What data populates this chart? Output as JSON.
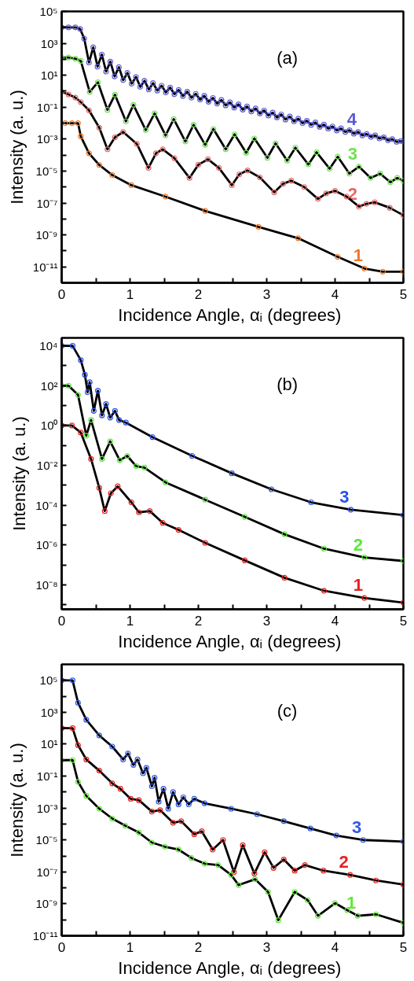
{
  "chart_data": [
    {
      "type": "scatter",
      "log": true,
      "marker": "circle",
      "line_style": "solid",
      "xlabel": "Incidence  Angle, αᵢ (degrees)",
      "ylabel": "Intensity (a. u.)",
      "xlim": [
        0,
        5
      ],
      "xticks": [
        0,
        {
          "value": 0.5,
          "label": null
        },
        1,
        {
          "value": 1.5,
          "label": null
        },
        2,
        {
          "value": 2.5,
          "label": null
        },
        3,
        {
          "value": 3.5,
          "label": null
        },
        4,
        {
          "value": 4.5,
          "label": null
        },
        5
      ],
      "ylim": [
        1e-12,
        100000.0
      ],
      "yticks": [
        {
          "value": 100000.0,
          "label": "10⁵"
        },
        {
          "value": 10000.0,
          "label": null
        },
        {
          "value": 1000.0,
          "label": "10³"
        },
        {
          "value": 100.0,
          "label": null
        },
        {
          "value": 10.0,
          "label": "10¹"
        },
        {
          "value": 1,
          "label": null
        },
        {
          "value": 0.1,
          "label": "10⁻¹"
        },
        {
          "value": 0.01,
          "label": null
        },
        {
          "value": 0.001,
          "label": "10⁻³"
        },
        {
          "value": 0.0001,
          "label": null
        },
        {
          "value": 1e-05,
          "label": "10⁻⁵"
        },
        {
          "value": 1e-06,
          "label": null
        },
        {
          "value": 1e-07,
          "label": "10⁻⁷"
        },
        {
          "value": 1e-08,
          "label": null
        },
        {
          "value": 1e-09,
          "label": "10⁻⁹"
        },
        {
          "value": 1e-10,
          "label": null
        },
        {
          "value": 1e-11,
          "label": "10⁻¹¹"
        }
      ],
      "annotations": [
        "(a)"
      ],
      "series": [
        {
          "name": "4",
          "color": "#5a5ad8",
          "x": [
            0,
            0.1,
            0.2,
            0.27,
            0.33,
            0.4,
            0.4625,
            0.525,
            0.5875,
            0.65,
            0.7125,
            0.775,
            0.8375,
            0.9,
            0.9625,
            1.025,
            1.0875,
            1.15,
            1.2125,
            1.275,
            1.3375,
            1.4,
            1.4625,
            1.525,
            1.5875,
            1.65,
            1.7125,
            1.775,
            1.8375,
            1.9,
            1.9625,
            2.025,
            2.0875,
            2.15,
            2.2125,
            2.275,
            2.3375,
            2.4,
            2.4625,
            2.525,
            2.5875,
            2.65,
            2.7125,
            2.775,
            2.8375,
            2.9,
            2.9625,
            3.025,
            3.0875,
            3.15,
            3.2125,
            3.275,
            3.3375,
            3.4,
            3.4625,
            3.525,
            3.5875,
            3.65,
            3.7125,
            3.775,
            3.8375,
            3.9,
            3.9625,
            4.025,
            4.0875,
            4.15,
            4.2125,
            4.275,
            4.3375,
            4.4,
            4.4625,
            4.525,
            4.5875,
            4.65,
            4.7125,
            4.775,
            4.8375,
            4.9,
            4.9625,
            5.0
          ],
          "values": [
            10000.0,
            10000.0,
            10000.0,
            7900.0,
            2000.0,
            63,
            560.0,
            35,
            200.0,
            17,
            71,
            8.5,
            32,
            5.0,
            14,
            3.0,
            7.9,
            1.9,
            4.5,
            1.3,
            3.2,
            1.1,
            2.2,
            0.85,
            1.7,
            0.66,
            1.2,
            0.5,
            0.93,
            0.39,
            0.69,
            0.3,
            0.51,
            0.22,
            0.38,
            0.17,
            0.28,
            0.13,
            0.2,
            0.095,
            0.15,
            0.071,
            0.11,
            0.054,
            0.083,
            0.04,
            0.062,
            0.03,
            0.046,
            0.023,
            0.035,
            0.017,
            0.026,
            0.013,
            0.019,
            0.01,
            0.014,
            0.0079,
            0.011,
            0.0059,
            0.0081,
            0.0046,
            0.0062,
            0.0035,
            0.0047,
            0.0028,
            0.0036,
            0.0022,
            0.0028,
            0.0017,
            0.0021,
            0.0014,
            0.0017,
            0.0011,
            0.0013,
            0.00085,
            0.001,
            0.00068,
            0.00076,
            0.00071
          ]
        },
        {
          "name": "3",
          "color": "#6ee050",
          "x": [
            0,
            0.1,
            0.2,
            0.28,
            0.41,
            0.53,
            0.67,
            0.78,
            0.94,
            1.05,
            1.23,
            1.36,
            1.52,
            1.64,
            1.81,
            1.93,
            2.1,
            2.22,
            2.4,
            2.53,
            2.7,
            2.82,
            3.01,
            3.13,
            3.3,
            3.42,
            3.61,
            3.73,
            3.92,
            4.04,
            4.21,
            4.35,
            4.52,
            4.66,
            4.81,
            4.91,
            5
          ],
          "values": [
            130.0,
            130.0,
            110.0,
            79,
            0.91,
            3.6,
            0.068,
            0.6,
            0.013,
            0.14,
            0.0037,
            0.041,
            0.0017,
            0.018,
            0.00071,
            0.0079,
            0.00044,
            0.0043,
            0.00023,
            0.002,
            0.00014,
            0.0011,
            6.8e-05,
            0.00054,
            4.5e-05,
            0.00029,
            2.6e-05,
            0.00015,
            1.4e-05,
            7.9e-05,
            6.9e-06,
            1.9e-05,
            3.7e-06,
            6.9e-06,
            2e-06,
            3.7e-06,
            2.5e-06
          ]
        },
        {
          "name": "2",
          "color": "#e86868",
          "x": [
            0,
            0.1,
            0.2,
            0.28,
            0.4,
            0.55,
            0.67,
            0.78,
            0.9,
            1.1,
            1.27,
            1.38,
            1.48,
            1.65,
            1.87,
            2.0,
            2.14,
            2.3,
            2.49,
            2.6,
            2.72,
            2.9,
            3.11,
            3.24,
            3.36,
            3.55,
            3.75,
            3.87,
            4.0,
            4.17,
            4.35,
            4.46,
            4.58,
            4.8,
            5
          ],
          "values": [
            0.91,
            0.63,
            0.4,
            0.21,
            0.063,
            0.0052,
            0.00023,
            0.0013,
            0.0028,
            0.0005,
            1.6e-05,
            0.00013,
            0.00023,
            6.3e-05,
            3.7e-06,
            2.5e-05,
            5.5e-05,
            1.6e-05,
            1.3e-06,
            6.3e-06,
            1.1e-05,
            4e-06,
            4.7e-07,
            1.6e-06,
            2.5e-06,
            1e-06,
            1.8e-07,
            4e-07,
            5.8e-07,
            2.5e-07,
            5.9e-08,
            8.9e-08,
            1.1e-07,
            5e-08,
            1.7e-08
          ]
        },
        {
          "name": "1",
          "color": "#f07828",
          "x": [
            0.05,
            0.15,
            0.24,
            0.28,
            0.4,
            0.55,
            0.74,
            1.02,
            1.52,
            2.1,
            2.88,
            3.46,
            4.04,
            4.43,
            4.7,
            5
          ],
          "values": [
            0.01,
            0.01,
            0.01,
            0.0015,
            0.00013,
            2.4e-05,
            5.6e-06,
            1.3e-06,
            2.5e-07,
            3.2e-08,
            3.2e-09,
            6.2e-10,
            4.2e-11,
            7.9e-12,
            5e-12,
            5e-12
          ]
        },
        {
          "type": "line",
          "marker": "none",
          "color": "#000000",
          "x": [
            0,
            0.1,
            0.2,
            0.27,
            0.33,
            0.4,
            0.4625,
            0.525,
            0.5875,
            0.65,
            0.7125,
            0.775,
            0.8375,
            0.9,
            0.9625,
            1.025,
            1.0875,
            1.15,
            1.2125,
            1.275,
            1.3375,
            1.4,
            1.4625,
            1.525,
            1.5875,
            1.65,
            1.7125,
            1.775,
            1.8375,
            1.9,
            1.9625,
            2.025,
            2.0875,
            2.15,
            2.2125,
            2.275,
            2.3375,
            2.4,
            2.4625,
            2.525,
            2.5875,
            2.65,
            2.7125,
            2.775,
            2.8375,
            2.9,
            2.9625,
            3.025,
            3.0875,
            3.15,
            3.2125,
            3.275,
            3.3375,
            3.4,
            3.4625,
            3.525,
            3.5875,
            3.65,
            3.7125,
            3.775,
            3.8375,
            3.9,
            3.9625,
            4.025,
            4.0875,
            4.15,
            4.2125,
            4.275,
            4.3375,
            4.4,
            4.4625,
            4.525,
            4.5875,
            4.65,
            4.7125,
            4.775,
            4.8375,
            4.9,
            4.9625,
            5.0
          ],
          "values": [
            10000.0,
            10000.0,
            10000.0,
            7900.0,
            2000.0,
            63,
            560.0,
            35,
            200.0,
            17,
            71,
            8.5,
            32,
            5.0,
            14,
            3.0,
            7.9,
            1.9,
            4.5,
            1.3,
            3.2,
            1.1,
            2.2,
            0.85,
            1.7,
            0.66,
            1.2,
            0.5,
            0.93,
            0.39,
            0.69,
            0.3,
            0.51,
            0.22,
            0.38,
            0.17,
            0.28,
            0.13,
            0.2,
            0.095,
            0.15,
            0.071,
            0.11,
            0.054,
            0.083,
            0.04,
            0.062,
            0.03,
            0.046,
            0.023,
            0.035,
            0.017,
            0.026,
            0.013,
            0.019,
            0.01,
            0.014,
            0.0079,
            0.011,
            0.0059,
            0.0081,
            0.0046,
            0.0062,
            0.0035,
            0.0047,
            0.0028,
            0.0036,
            0.0022,
            0.0028,
            0.0017,
            0.0021,
            0.0014,
            0.0017,
            0.0011,
            0.0013,
            0.00085,
            0.001,
            0.00068,
            0.00076,
            0.00071
          ]
        },
        {
          "type": "line",
          "marker": "none",
          "color": "#000000",
          "x": [
            0,
            0.1,
            0.2,
            0.28,
            0.41,
            0.53,
            0.67,
            0.78,
            0.94,
            1.05,
            1.23,
            1.36,
            1.52,
            1.64,
            1.81,
            1.93,
            2.1,
            2.22,
            2.4,
            2.53,
            2.7,
            2.82,
            3.01,
            3.13,
            3.3,
            3.42,
            3.61,
            3.73,
            3.92,
            4.04,
            4.21,
            4.35,
            4.52,
            4.66,
            4.81,
            4.91,
            5
          ],
          "values": [
            130.0,
            130.0,
            110.0,
            79,
            0.91,
            3.6,
            0.068,
            0.6,
            0.013,
            0.14,
            0.0037,
            0.041,
            0.0017,
            0.018,
            0.00071,
            0.0079,
            0.00044,
            0.0043,
            0.00023,
            0.002,
            0.00014,
            0.0011,
            6.8e-05,
            0.00054,
            4.5e-05,
            0.00029,
            2.6e-05,
            0.00015,
            1.4e-05,
            7.9e-05,
            6.9e-06,
            1.9e-05,
            3.7e-06,
            6.9e-06,
            2e-06,
            3.7e-06,
            2.5e-06
          ]
        },
        {
          "type": "line",
          "marker": "none",
          "color": "#000000",
          "x": [
            0,
            0.1,
            0.2,
            0.28,
            0.4,
            0.55,
            0.67,
            0.78,
            0.9,
            1.1,
            1.27,
            1.38,
            1.48,
            1.65,
            1.87,
            2.0,
            2.14,
            2.3,
            2.49,
            2.6,
            2.72,
            2.9,
            3.11,
            3.24,
            3.36,
            3.55,
            3.75,
            3.87,
            4.0,
            4.17,
            4.35,
            4.46,
            4.58,
            4.8,
            5
          ],
          "values": [
            0.91,
            0.63,
            0.4,
            0.21,
            0.063,
            0.0052,
            0.00023,
            0.0013,
            0.0028,
            0.0005,
            1.6e-05,
            0.00013,
            0.00023,
            6.3e-05,
            3.7e-06,
            2.5e-05,
            5.5e-05,
            1.6e-05,
            1.3e-06,
            6.3e-06,
            1.1e-05,
            4e-06,
            4.7e-07,
            1.6e-06,
            2.5e-06,
            1e-06,
            1.8e-07,
            4e-07,
            5.8e-07,
            2.5e-07,
            5.9e-08,
            8.9e-08,
            1.1e-07,
            5e-08,
            1.7e-08
          ]
        },
        {
          "type": "line",
          "marker": "none",
          "color": "#000000",
          "x": [
            0.05,
            0.15,
            0.24,
            0.28,
            0.4,
            0.55,
            0.74,
            1.02,
            1.52,
            2.1,
            2.88,
            3.46,
            4.04,
            4.43,
            4.7,
            5
          ],
          "values": [
            0.01,
            0.01,
            0.01,
            0.0015,
            0.00013,
            2.4e-05,
            5.6e-06,
            1.3e-06,
            2.5e-07,
            3.2e-08,
            3.2e-09,
            6.2e-10,
            4.2e-11,
            7.9e-12,
            5e-12,
            5e-12
          ]
        }
      ]
    },
    {
      "type": "scatter",
      "log": true,
      "marker": "circle",
      "line_style": "solid",
      "xlabel": "Incidence  Angle, αᵢ (degrees)",
      "ylabel": "Intensity (a. u.)",
      "xlim": [
        0,
        5
      ],
      "xticks": [
        0,
        {
          "value": 0.5,
          "label": null
        },
        1,
        {
          "value": 1.5,
          "label": null
        },
        2,
        {
          "value": 2.5,
          "label": null
        },
        3,
        {
          "value": 3.5,
          "label": null
        },
        4,
        {
          "value": 4.5,
          "label": null
        },
        5
      ],
      "ylim": [
        6e-10,
        25000.0
      ],
      "yticks": [
        {
          "value": 10000.0,
          "label": "10⁴"
        },
        {
          "value": 1000.0,
          "label": null
        },
        {
          "value": 100.0,
          "label": "10²"
        },
        {
          "value": 10.0,
          "label": null
        },
        {
          "value": 1,
          "label": "10⁰"
        },
        {
          "value": 0.1,
          "label": null
        },
        {
          "value": 0.01,
          "label": "10⁻²"
        },
        {
          "value": 0.001,
          "label": null
        },
        {
          "value": 0.0001,
          "label": "10⁻⁴"
        },
        {
          "value": 1e-05,
          "label": null
        },
        {
          "value": 1e-06,
          "label": "10⁻⁶"
        },
        {
          "value": 1e-07,
          "label": null
        },
        {
          "value": 1e-08,
          "label": "10⁻⁸"
        },
        {
          "value": 1e-09,
          "label": null
        }
      ],
      "annotations": [
        "(b)"
      ],
      "series": [
        {
          "name": "3",
          "color": "#2850e8",
          "x": [
            0,
            0.16,
            0.28,
            0.34,
            0.38,
            0.41,
            0.47,
            0.53,
            0.59,
            0.65,
            0.71,
            0.78,
            0.84,
            0.94,
            1.33,
            1.91,
            2.49,
            3.07,
            3.65,
            4.23,
            5
          ],
          "values": [
            10000.0,
            10000.0,
            1900.0,
            350.0,
            47,
            150.0,
            5.4,
            56,
            3.2,
            12,
            2.5,
            5.4,
            1.9,
            1.4,
            0.26,
            0.03,
            0.004,
            0.00063,
            0.00014,
            6e-05,
            3.2e-05
          ]
        },
        {
          "name": "2",
          "color": "#58e838",
          "x": [
            0,
            0.1,
            0.24,
            0.36,
            0.43,
            0.59,
            0.71,
            0.85,
            0.96,
            1.09,
            1.21,
            1.52,
            2.1,
            2.68,
            3.26,
            3.84,
            4.43,
            5
          ],
          "values": [
            100.0,
            100.0,
            34,
            0.31,
            1.9,
            0.021,
            0.16,
            0.018,
            0.03,
            0.0091,
            0.0078,
            0.0014,
            0.00019,
            2.6e-05,
            3.5e-06,
            6.6e-07,
            2.4e-07,
            1.6e-07
          ]
        },
        {
          "name": "1",
          "color": "#e82020",
          "x": [
            0,
            0.15,
            0.28,
            0.43,
            0.55,
            0.63,
            0.72,
            0.82,
            1.02,
            1.13,
            1.29,
            1.48,
            1.71,
            2.1,
            2.68,
            3.26,
            3.84,
            4.43,
            5
          ],
          "values": [
            1.0,
            1.0,
            0.44,
            0.021,
            0.00074,
            5.1e-05,
            0.0004,
            0.00089,
            0.00014,
            4.4e-05,
            5.1e-05,
            1.3e-05,
            5.8e-06,
            1.3e-06,
            1.7e-07,
            2.3e-08,
            5.1e-09,
            2.2e-09,
            1.3e-09
          ]
        },
        {
          "type": "line",
          "marker": "none",
          "color": "#000000",
          "x": [
            0,
            0.16,
            0.28,
            0.34,
            0.38,
            0.41,
            0.47,
            0.53,
            0.59,
            0.65,
            0.71,
            0.78,
            0.84,
            0.94,
            1.33,
            1.91,
            2.49,
            3.07,
            3.65,
            4.23,
            5
          ],
          "values": [
            10000.0,
            10000.0,
            1900.0,
            350.0,
            47,
            150.0,
            5.4,
            56,
            3.2,
            12,
            2.5,
            5.4,
            1.9,
            1.4,
            0.26,
            0.03,
            0.004,
            0.00063,
            0.00014,
            6e-05,
            3.2e-05
          ]
        },
        {
          "type": "line",
          "marker": "none",
          "color": "#000000",
          "x": [
            0,
            0.1,
            0.24,
            0.36,
            0.43,
            0.59,
            0.71,
            0.85,
            0.96,
            1.09,
            1.21,
            1.52,
            2.1,
            2.68,
            3.26,
            3.84,
            4.43,
            5
          ],
          "values": [
            100.0,
            100.0,
            34,
            0.31,
            1.9,
            0.021,
            0.16,
            0.018,
            0.03,
            0.0091,
            0.0078,
            0.0014,
            0.00019,
            2.6e-05,
            3.5e-06,
            6.6e-07,
            2.4e-07,
            1.6e-07
          ]
        },
        {
          "type": "line",
          "marker": "none",
          "color": "#000000",
          "x": [
            0,
            0.15,
            0.28,
            0.43,
            0.55,
            0.63,
            0.72,
            0.82,
            1.02,
            1.13,
            1.29,
            1.48,
            1.71,
            2.1,
            2.68,
            3.26,
            3.84,
            4.43,
            5
          ],
          "values": [
            1.0,
            1.0,
            0.44,
            0.021,
            0.00074,
            5.1e-05,
            0.0004,
            0.00089,
            0.00014,
            4.4e-05,
            5.1e-05,
            1.3e-05,
            5.8e-06,
            1.3e-06,
            1.7e-07,
            2.3e-08,
            5.1e-09,
            2.2e-09,
            1.3e-09
          ]
        }
      ]
    },
    {
      "type": "scatter",
      "log": true,
      "marker": "circle",
      "line_style": "solid",
      "xlabel": "Incidence  Angle, αᵢ (degrees)",
      "ylabel": "Intensity (a. u.)",
      "xlim": [
        0,
        5
      ],
      "xticks": [
        0,
        {
          "value": 0.5,
          "label": null
        },
        1,
        {
          "value": 1.5,
          "label": null
        },
        2,
        {
          "value": 2.5,
          "label": null
        },
        3,
        {
          "value": 3.5,
          "label": null
        },
        4,
        {
          "value": 4.5,
          "label": null
        },
        5
      ],
      "ylim": [
        1e-11,
        1000000.0
      ],
      "yticks": [
        {
          "value": 100000.0,
          "label": "10⁵"
        },
        {
          "value": 10000.0,
          "label": null
        },
        {
          "value": 1000.0,
          "label": "10³"
        },
        {
          "value": 100.0,
          "label": null
        },
        {
          "value": 10.0,
          "label": "10¹"
        },
        {
          "value": 1,
          "label": null
        },
        {
          "value": 0.1,
          "label": "10⁻¹"
        },
        {
          "value": 0.01,
          "label": null
        },
        {
          "value": 0.001,
          "label": "10⁻³"
        },
        {
          "value": 0.0001,
          "label": null
        },
        {
          "value": 1e-05,
          "label": "10⁻⁵"
        },
        {
          "value": 1e-06,
          "label": null
        },
        {
          "value": 1e-07,
          "label": "10⁻⁷"
        },
        {
          "value": 1e-08,
          "label": null
        },
        {
          "value": 1e-09,
          "label": "10⁻⁹"
        },
        {
          "value": 1e-10,
          "label": null
        },
        {
          "value": 1e-11,
          "label": "10⁻¹¹"
        }
      ],
      "annotations": [
        "(c)"
      ],
      "series": [
        {
          "name": "3",
          "color": "#3058e8",
          "x": [
            0,
            0.16,
            0.24,
            0.36,
            0.55,
            0.74,
            0.9,
            0.97,
            1.05,
            1.11,
            1.19,
            1.24,
            1.32,
            1.36,
            1.42,
            1.49,
            1.56,
            1.63,
            1.71,
            1.78,
            1.86,
            1.94,
            2.09,
            2.48,
            2.86,
            3.25,
            3.64,
            4.02,
            4.41,
            5
          ],
          "values": [
            100000.0,
            100000.0,
            3900.0,
            340.0,
            35,
            7.1,
            1.1,
            2.6,
            0.5,
            1.1,
            0.15,
            0.33,
            0.023,
            0.079,
            0.0025,
            0.016,
            0.00091,
            0.01,
            0.0017,
            0.0047,
            0.0017,
            0.0038,
            0.002,
            0.00091,
            0.00041,
            0.00015,
            5.2e-05,
            1.9e-05,
            1e-05,
            7.9e-06
          ]
        },
        {
          "name": "2",
          "color": "#e82020",
          "x": [
            0,
            0.16,
            0.24,
            0.36,
            0.55,
            0.74,
            0.86,
            1.01,
            1.13,
            1.32,
            1.44,
            1.63,
            1.75,
            1.94,
            2.05,
            2.21,
            2.36,
            2.52,
            2.65,
            2.82,
            2.97,
            3.1,
            3.25,
            3.41,
            3.56,
            3.83,
            4.22,
            4.6,
            5
          ],
          "values": [
            100.0,
            100.0,
            8.7,
            1.1,
            0.22,
            0.035,
            0.016,
            0.0038,
            0.0031,
            0.0006,
            0.00074,
            0.00012,
            0.00015,
            2.3e-05,
            3.5e-05,
            2.5e-06,
            1e-05,
            9.8e-08,
            4.7e-06,
            7.9e-08,
            1.7e-06,
            1.8e-07,
            6e-07,
            1.2e-07,
            2.7e-07,
            1.2e-07,
            6.5e-08,
            2.9e-08,
            1.6e-08
          ]
        },
        {
          "name": "1",
          "color": "#60e838",
          "x": [
            0,
            0.16,
            0.24,
            0.36,
            0.55,
            0.74,
            0.93,
            1.13,
            1.32,
            1.51,
            1.71,
            1.9,
            2.09,
            2.29,
            2.48,
            2.59,
            2.83,
            3.02,
            3.17,
            3.41,
            3.6,
            3.75,
            4.0,
            4.18,
            4.33,
            4.6,
            5
          ],
          "values": [
            1.0,
            1.0,
            0.044,
            0.0058,
            0.00091,
            0.00022,
            7.9e-05,
            2.9e-05,
            6.9e-06,
            3.8e-06,
            2.5e-06,
            7.4e-07,
            3.3e-07,
            2.7e-07,
            6.5e-08,
            1.5e-08,
            3.5e-08,
            5.6e-09,
            9.5e-11,
            5.6e-09,
            1.7e-09,
            1.8e-10,
            1.1e-09,
            4e-10,
            1.8e-10,
            2.2e-10,
            6.5e-11
          ]
        },
        {
          "type": "line",
          "marker": "none",
          "color": "#000000",
          "x": [
            0,
            0.16,
            0.24,
            0.36,
            0.55,
            0.74,
            0.9,
            0.97,
            1.05,
            1.11,
            1.19,
            1.24,
            1.32,
            1.36,
            1.42,
            1.49,
            1.56,
            1.63,
            1.71,
            1.78,
            1.86,
            1.94,
            2.09,
            2.48,
            2.86,
            3.25,
            3.64,
            4.02,
            4.41,
            5
          ],
          "values": [
            100000.0,
            100000.0,
            3900.0,
            340.0,
            35,
            7.1,
            1.1,
            2.6,
            0.5,
            1.1,
            0.15,
            0.33,
            0.023,
            0.079,
            0.0025,
            0.016,
            0.00091,
            0.01,
            0.0017,
            0.0047,
            0.0017,
            0.0038,
            0.002,
            0.00091,
            0.00041,
            0.00015,
            5.2e-05,
            1.9e-05,
            1e-05,
            7.9e-06
          ]
        },
        {
          "type": "line",
          "marker": "none",
          "color": "#000000",
          "x": [
            0,
            0.16,
            0.24,
            0.36,
            0.55,
            0.74,
            0.86,
            1.01,
            1.13,
            1.32,
            1.44,
            1.63,
            1.75,
            1.94,
            2.05,
            2.21,
            2.36,
            2.52,
            2.65,
            2.82,
            2.97,
            3.1,
            3.25,
            3.41,
            3.56,
            3.83,
            4.22,
            4.6,
            5
          ],
          "values": [
            100.0,
            100.0,
            8.7,
            1.1,
            0.22,
            0.035,
            0.016,
            0.0038,
            0.0031,
            0.0006,
            0.00074,
            0.00012,
            0.00015,
            2.3e-05,
            3.5e-05,
            2.5e-06,
            1e-05,
            9.8e-08,
            4.7e-06,
            7.9e-08,
            1.7e-06,
            1.8e-07,
            6e-07,
            1.2e-07,
            2.7e-07,
            1.2e-07,
            6.5e-08,
            2.9e-08,
            1.6e-08
          ]
        },
        {
          "type": "line",
          "marker": "none",
          "color": "#000000",
          "x": [
            0,
            0.16,
            0.24,
            0.36,
            0.55,
            0.74,
            0.93,
            1.13,
            1.32,
            1.51,
            1.71,
            1.9,
            2.09,
            2.29,
            2.48,
            2.59,
            2.83,
            3.02,
            3.17,
            3.41,
            3.6,
            3.75,
            4.0,
            4.18,
            4.33,
            4.6,
            5
          ],
          "values": [
            1.0,
            1.0,
            0.044,
            0.0058,
            0.00091,
            0.00022,
            7.9e-05,
            2.9e-05,
            6.9e-06,
            3.8e-06,
            2.5e-06,
            7.4e-07,
            3.3e-07,
            2.7e-07,
            6.5e-08,
            1.5e-08,
            3.5e-08,
            5.6e-09,
            9.5e-11,
            5.6e-09,
            1.7e-09,
            1.8e-10,
            1.1e-09,
            4e-10,
            1.8e-10,
            2.2e-10,
            6.5e-11
          ]
        }
      ]
    }
  ]
}
